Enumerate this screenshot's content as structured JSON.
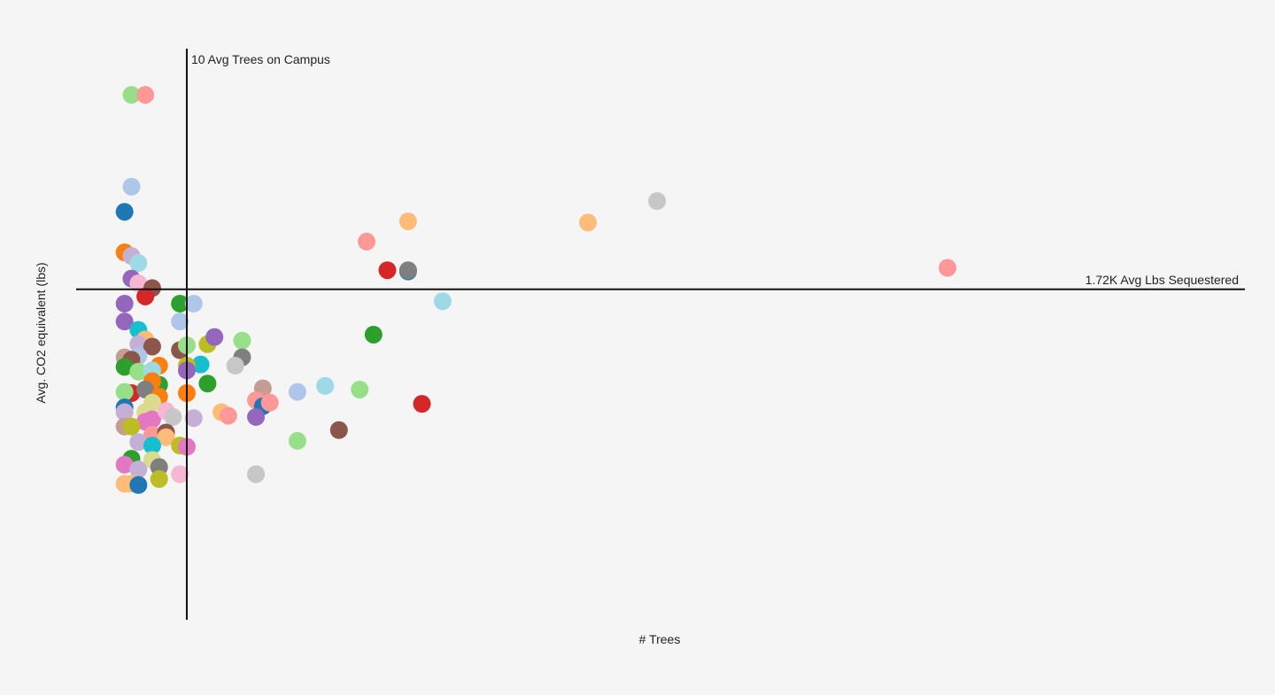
{
  "chart_data": {
    "type": "scatter",
    "xlabel": "# Trees",
    "ylabel": "Avg. CO2 equivalent (lbs)",
    "reference_lines": {
      "x": {
        "value": 10,
        "label": "10 Avg Trees on Campus"
      },
      "y": {
        "value": 1720,
        "label": "1.72K Avg Lbs Sequestered"
      }
    },
    "xlim": [
      -6,
      163
    ],
    "ylim": [
      -1050,
      3700
    ],
    "palette": [
      "#1f77b4",
      "#ff7f0e",
      "#2ca02c",
      "#d62728",
      "#9467bd",
      "#8c564b",
      "#e377c2",
      "#7f7f7f",
      "#bcbd22",
      "#17becf",
      "#aec7e8",
      "#ffbb78",
      "#98df8a",
      "#ff9896",
      "#c5b0d5",
      "#c49c94",
      "#f7b6d2",
      "#c7c7c7",
      "#dbdb8d",
      "#9edae5"
    ],
    "points": [
      {
        "x": 2,
        "y": 3350,
        "c": 12
      },
      {
        "x": 4,
        "y": 3350,
        "c": 13
      },
      {
        "x": 2,
        "y": 2580,
        "c": 10
      },
      {
        "x": 1,
        "y": 2370,
        "c": 0
      },
      {
        "x": 1,
        "y": 2030,
        "c": 1
      },
      {
        "x": 2,
        "y": 2000,
        "c": 14
      },
      {
        "x": 3,
        "y": 1940,
        "c": 19
      },
      {
        "x": 2,
        "y": 1810,
        "c": 4
      },
      {
        "x": 3,
        "y": 1770,
        "c": 16
      },
      {
        "x": 5,
        "y": 1730,
        "c": 5
      },
      {
        "x": 4,
        "y": 1660,
        "c": 3
      },
      {
        "x": 1,
        "y": 1600,
        "c": 4
      },
      {
        "x": 9,
        "y": 1600,
        "c": 2
      },
      {
        "x": 11,
        "y": 1600,
        "c": 10
      },
      {
        "x": 1,
        "y": 1450,
        "c": 4
      },
      {
        "x": 9,
        "y": 1450,
        "c": 10
      },
      {
        "x": 3,
        "y": 1380,
        "c": 9
      },
      {
        "x": 4,
        "y": 1300,
        "c": 11
      },
      {
        "x": 3,
        "y": 1260,
        "c": 14
      },
      {
        "x": 5,
        "y": 1240,
        "c": 5
      },
      {
        "x": 9,
        "y": 1210,
        "c": 5
      },
      {
        "x": 10,
        "y": 1250,
        "c": 12
      },
      {
        "x": 13,
        "y": 1260,
        "c": 8
      },
      {
        "x": 14,
        "y": 1320,
        "c": 4
      },
      {
        "x": 18,
        "y": 1290,
        "c": 12
      },
      {
        "x": 3,
        "y": 1160,
        "c": 10
      },
      {
        "x": 1,
        "y": 1150,
        "c": 15
      },
      {
        "x": 2,
        "y": 1130,
        "c": 5
      },
      {
        "x": 18,
        "y": 1150,
        "c": 7
      },
      {
        "x": 17,
        "y": 1080,
        "c": 17
      },
      {
        "x": 12,
        "y": 1090,
        "c": 9
      },
      {
        "x": 10,
        "y": 1080,
        "c": 8
      },
      {
        "x": 6,
        "y": 1080,
        "c": 1
      },
      {
        "x": 1,
        "y": 1070,
        "c": 2
      },
      {
        "x": 3,
        "y": 1030,
        "c": 12
      },
      {
        "x": 5,
        "y": 1040,
        "c": 19
      },
      {
        "x": 10,
        "y": 1040,
        "c": 4
      },
      {
        "x": 6,
        "y": 920,
        "c": 2
      },
      {
        "x": 5,
        "y": 950,
        "c": 1
      },
      {
        "x": 13,
        "y": 930,
        "c": 2
      },
      {
        "x": 2,
        "y": 850,
        "c": 3
      },
      {
        "x": 1,
        "y": 860,
        "c": 12
      },
      {
        "x": 4,
        "y": 880,
        "c": 7
      },
      {
        "x": 6,
        "y": 820,
        "c": 1
      },
      {
        "x": 10,
        "y": 850,
        "c": 1
      },
      {
        "x": 5,
        "y": 770,
        "c": 18
      },
      {
        "x": 21,
        "y": 890,
        "c": 15
      },
      {
        "x": 20,
        "y": 790,
        "c": 13
      },
      {
        "x": 21,
        "y": 740,
        "c": 0
      },
      {
        "x": 22,
        "y": 770,
        "c": 13
      },
      {
        "x": 26,
        "y": 860,
        "c": 10
      },
      {
        "x": 1,
        "y": 730,
        "c": 0
      },
      {
        "x": 1,
        "y": 690,
        "c": 14
      },
      {
        "x": 4,
        "y": 690,
        "c": 18
      },
      {
        "x": 5,
        "y": 630,
        "c": 6
      },
      {
        "x": 4,
        "y": 610,
        "c": 6
      },
      {
        "x": 7,
        "y": 700,
        "c": 16
      },
      {
        "x": 8,
        "y": 650,
        "c": 17
      },
      {
        "x": 11,
        "y": 640,
        "c": 14
      },
      {
        "x": 15,
        "y": 690,
        "c": 11
      },
      {
        "x": 16,
        "y": 660,
        "c": 13
      },
      {
        "x": 20,
        "y": 650,
        "c": 4
      },
      {
        "x": 1,
        "y": 570,
        "c": 15
      },
      {
        "x": 2,
        "y": 570,
        "c": 8
      },
      {
        "x": 5,
        "y": 500,
        "c": 13
      },
      {
        "x": 7,
        "y": 520,
        "c": 5
      },
      {
        "x": 7,
        "y": 480,
        "c": 11
      },
      {
        "x": 3,
        "y": 440,
        "c": 14
      },
      {
        "x": 5,
        "y": 410,
        "c": 9
      },
      {
        "x": 9,
        "y": 410,
        "c": 8
      },
      {
        "x": 10,
        "y": 400,
        "c": 6
      },
      {
        "x": 2,
        "y": 300,
        "c": 2
      },
      {
        "x": 5,
        "y": 290,
        "c": 18
      },
      {
        "x": 1,
        "y": 250,
        "c": 6
      },
      {
        "x": 3,
        "y": 210,
        "c": 14
      },
      {
        "x": 6,
        "y": 230,
        "c": 7
      },
      {
        "x": 1,
        "y": 90,
        "c": 11
      },
      {
        "x": 2,
        "y": 90,
        "c": 11
      },
      {
        "x": 3,
        "y": 80,
        "c": 0
      },
      {
        "x": 6,
        "y": 130,
        "c": 8
      },
      {
        "x": 9,
        "y": 170,
        "c": 16
      },
      {
        "x": 20,
        "y": 170,
        "c": 17
      },
      {
        "x": 36,
        "y": 2120,
        "c": 13
      },
      {
        "x": 42,
        "y": 2290,
        "c": 11
      },
      {
        "x": 42,
        "y": 1870,
        "c": 0
      },
      {
        "x": 42,
        "y": 1880,
        "c": 7
      },
      {
        "x": 39,
        "y": 1880,
        "c": 3
      },
      {
        "x": 47,
        "y": 1620,
        "c": 19
      },
      {
        "x": 37,
        "y": 1340,
        "c": 2
      },
      {
        "x": 30,
        "y": 910,
        "c": 19
      },
      {
        "x": 35,
        "y": 880,
        "c": 12
      },
      {
        "x": 44,
        "y": 760,
        "c": 3
      },
      {
        "x": 32,
        "y": 540,
        "c": 5
      },
      {
        "x": 26,
        "y": 450,
        "c": 12
      },
      {
        "x": 68,
        "y": 2280,
        "c": 11
      },
      {
        "x": 78,
        "y": 2460,
        "c": 17
      },
      {
        "x": 120,
        "y": 1900,
        "c": 13
      }
    ]
  }
}
